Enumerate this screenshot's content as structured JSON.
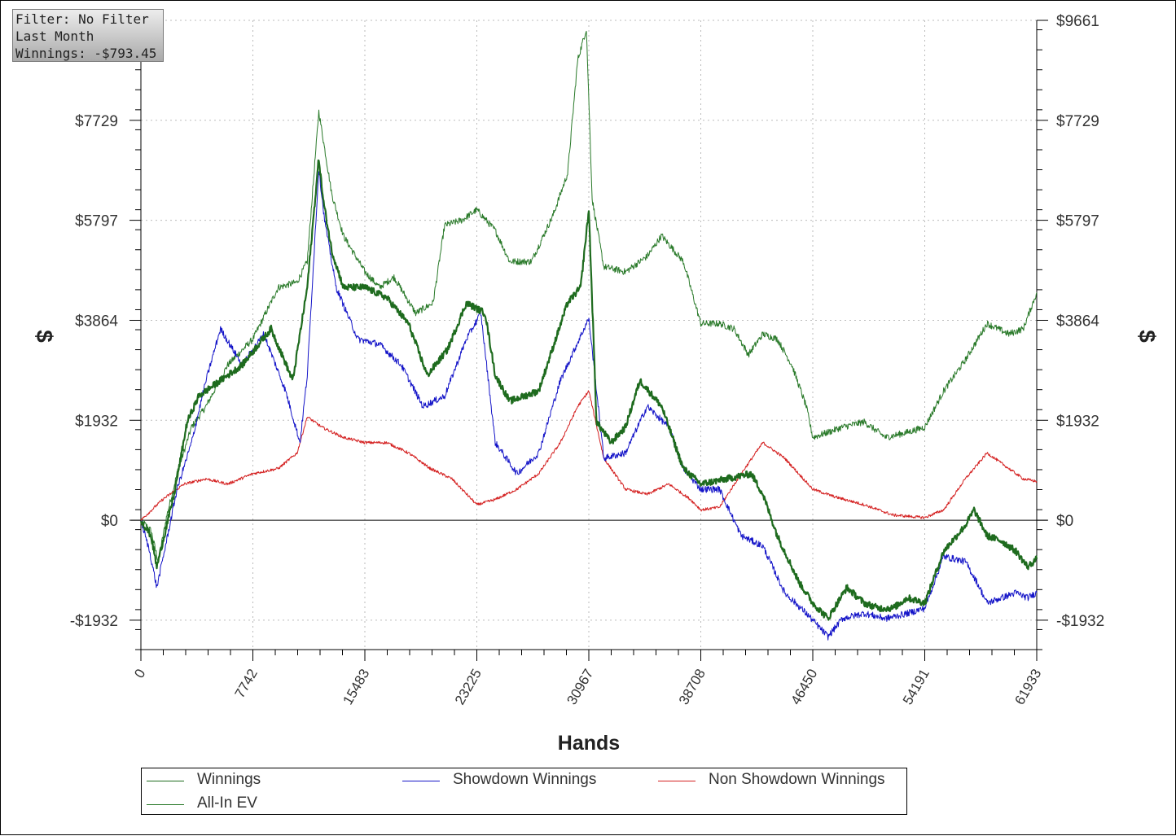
{
  "info_box": {
    "filter": "Filter: No Filter",
    "period": "Last Month",
    "winnings": "Winnings: -$793.45"
  },
  "chart_data": {
    "type": "line",
    "xlabel": "Hands",
    "ylabel": "$",
    "xlim": [
      0,
      61933
    ],
    "ylim": [
      -2500,
      9661
    ],
    "x_ticks": [
      0,
      7742,
      15483,
      23225,
      30967,
      38708,
      46450,
      54191,
      61933
    ],
    "y_ticks": [
      {
        "value": -1932,
        "label": "-$1932"
      },
      {
        "value": 0,
        "label": "$0"
      },
      {
        "value": 1932,
        "label": "$1932"
      },
      {
        "value": 3864,
        "label": "$3864"
      },
      {
        "value": 5797,
        "label": "$5797"
      },
      {
        "value": 7729,
        "label": "$7729"
      },
      {
        "value": 9661,
        "label": "$9661"
      }
    ],
    "grid": true,
    "legend_position": "bottom",
    "series": [
      {
        "name": "Winnings",
        "color": "#1e6b1e",
        "x": [
          0,
          700,
          1100,
          1700,
          2300,
          3200,
          4000,
          5500,
          7000,
          9000,
          10500,
          11500,
          12300,
          12600,
          13200,
          14000,
          15500,
          17000,
          18500,
          19800,
          21200,
          22500,
          23800,
          24500,
          25500,
          27500,
          29500,
          30400,
          30967,
          31500,
          32500,
          33500,
          34500,
          36000,
          37500,
          38708,
          40500,
          42200,
          43000,
          44000,
          45500,
          46450,
          47500,
          48800,
          50000,
          51000,
          52000,
          53000,
          54191,
          55500,
          57000,
          57600,
          58500,
          59500,
          60500,
          61300,
          61933
        ],
        "y": [
          0,
          -300,
          -900,
          -200,
          500,
          1900,
          2400,
          2700,
          3000,
          3700,
          2700,
          4500,
          7000,
          6200,
          5200,
          4500,
          4500,
          4300,
          3800,
          2800,
          3300,
          4200,
          4000,
          2800,
          2300,
          2500,
          4200,
          4500,
          6000,
          1900,
          1500,
          1800,
          2700,
          2200,
          1000,
          700,
          800,
          900,
          500,
          -300,
          -1200,
          -1600,
          -1900,
          -1300,
          -1600,
          -1700,
          -1700,
          -1500,
          -1600,
          -600,
          -100,
          200,
          -300,
          -400,
          -600,
          -900,
          -750
        ]
      },
      {
        "name": "Showdown Winnings",
        "color": "#1414c8",
        "x": [
          0,
          600,
          1100,
          1700,
          2500,
          3500,
          4500,
          5500,
          7000,
          8500,
          10000,
          11000,
          11500,
          12300,
          12700,
          13500,
          15000,
          16500,
          18000,
          19500,
          21000,
          22500,
          23500,
          24500,
          26000,
          27500,
          29000,
          30300,
          30967,
          32000,
          33500,
          35000,
          36500,
          37500,
          38708,
          40000,
          41500,
          43000,
          44500,
          46000,
          47500,
          48500,
          50000,
          51500,
          53000,
          54191,
          55500,
          57000,
          57800,
          58500,
          59500,
          60500,
          61300,
          61933
        ],
        "y": [
          0,
          -600,
          -1300,
          -500,
          600,
          1500,
          2700,
          3700,
          3000,
          3600,
          2500,
          1500,
          2800,
          6800,
          5800,
          4500,
          3500,
          3400,
          3000,
          2200,
          2400,
          3500,
          4000,
          1500,
          900,
          1300,
          2700,
          3500,
          3900,
          1200,
          1300,
          2200,
          1800,
          1000,
          600,
          600,
          -300,
          -500,
          -1400,
          -1800,
          -2250,
          -1900,
          -1800,
          -1900,
          -1800,
          -1700,
          -700,
          -800,
          -1200,
          -1600,
          -1500,
          -1400,
          -1500,
          -1400
        ]
      },
      {
        "name": "Non Showdown Winnings",
        "color": "#d42020",
        "x": [
          0,
          1500,
          3000,
          4500,
          6000,
          7742,
          9500,
          10800,
          11500,
          12500,
          14000,
          15483,
          17000,
          18500,
          20000,
          21500,
          23225,
          24500,
          26000,
          27500,
          29000,
          30200,
          30967,
          32000,
          33500,
          35000,
          36500,
          38000,
          38708,
          40000,
          41500,
          43000,
          44500,
          46450,
          48000,
          50000,
          52000,
          54191,
          55500,
          57000,
          58500,
          60000,
          61000,
          61933
        ],
        "y": [
          0,
          400,
          700,
          800,
          700,
          900,
          1000,
          1300,
          2000,
          1800,
          1600,
          1500,
          1500,
          1300,
          1000,
          800,
          300,
          400,
          600,
          900,
          1500,
          2200,
          2500,
          1200,
          600,
          500,
          700,
          400,
          200,
          250,
          900,
          1500,
          1200,
          600,
          450,
          300,
          100,
          50,
          200,
          800,
          1300,
          1000,
          800,
          750
        ]
      },
      {
        "name": "All-In EV",
        "color": "#2a7a2a",
        "x": [
          0,
          700,
          1200,
          1800,
          2500,
          3500,
          4500,
          6000,
          7742,
          9500,
          10800,
          11500,
          12300,
          13200,
          14000,
          15483,
          16500,
          17500,
          19000,
          20200,
          21000,
          22200,
          23225,
          24500,
          25500,
          27000,
          28500,
          29500,
          30200,
          30800,
          31200,
          32000,
          33500,
          35000,
          36000,
          37500,
          38708,
          40000,
          41000,
          42000,
          43000,
          44000,
          45000,
          46000,
          46450,
          47500,
          48500,
          50000,
          51500,
          53000,
          54191,
          55500,
          57000,
          58500,
          60000,
          61000,
          61933
        ],
        "y": [
          0,
          -200,
          -800,
          100,
          900,
          1800,
          2200,
          3000,
          3500,
          4500,
          4600,
          5000,
          7900,
          6300,
          5500,
          4800,
          4500,
          4700,
          4000,
          4200,
          5700,
          5800,
          6000,
          5600,
          5000,
          5000,
          5900,
          6700,
          8900,
          9500,
          6200,
          4900,
          4800,
          5100,
          5500,
          5000,
          3800,
          3800,
          3700,
          3200,
          3600,
          3500,
          3000,
          2200,
          1600,
          1700,
          1800,
          1900,
          1600,
          1700,
          1800,
          2500,
          3100,
          3800,
          3600,
          3700,
          4400
        ]
      }
    ]
  }
}
